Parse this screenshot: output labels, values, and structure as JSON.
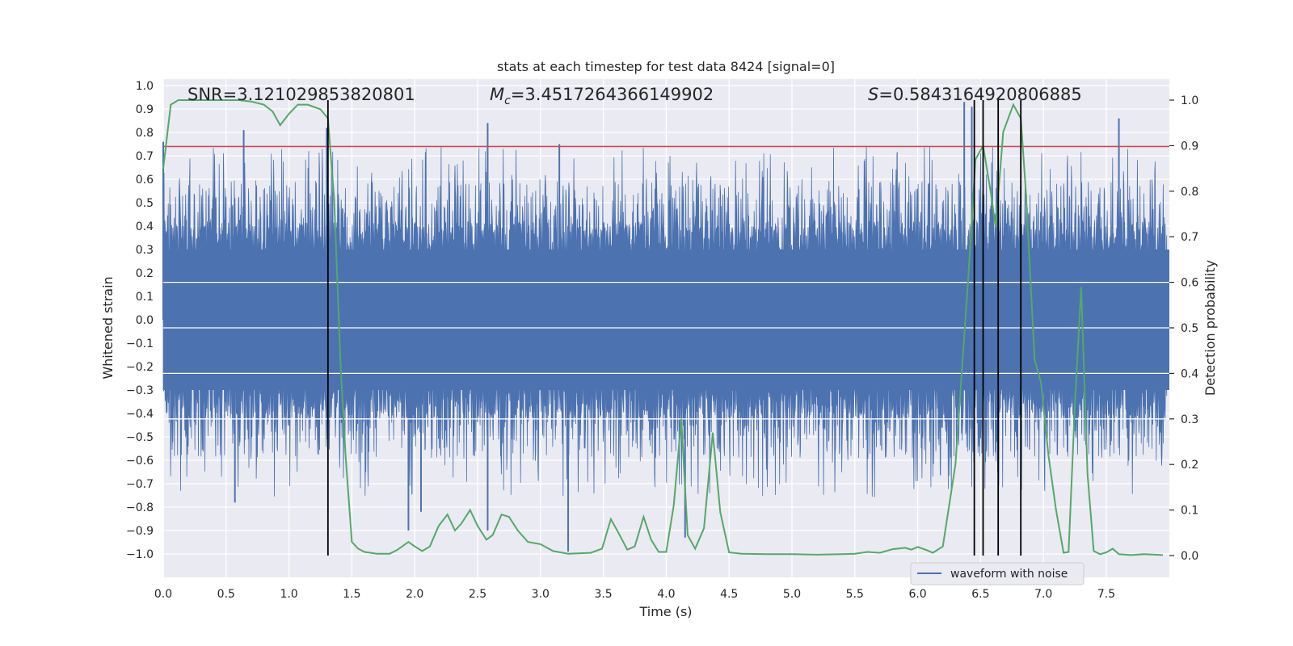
{
  "chart_data": {
    "type": "line",
    "title": "stats at each timestep for test data 8424 [signal=0]",
    "xlabel": "Time (s)",
    "ylabel": "Whitened strain",
    "y2label": "Detection probability",
    "xlim": [
      0.0,
      8.0
    ],
    "ylim": [
      -1.09,
      1.02
    ],
    "y2lim": [
      -0.05,
      1.04
    ],
    "xticks": [
      0.0,
      0.5,
      1.0,
      1.5,
      2.0,
      2.5,
      3.0,
      3.5,
      4.0,
      4.5,
      5.0,
      5.5,
      6.0,
      6.5,
      7.0,
      7.5
    ],
    "yticks": [
      1.0,
      0.9,
      0.8,
      0.7,
      0.6,
      0.5,
      0.4,
      0.3,
      0.2,
      0.1,
      0.0,
      -0.1,
      -0.2,
      -0.3,
      -0.4,
      -0.5,
      -0.6,
      -0.7,
      -0.8,
      -0.9,
      -1.0
    ],
    "y2ticks": [
      1.0,
      0.9,
      0.8,
      0.7,
      0.6,
      0.5,
      0.4,
      0.3,
      0.2,
      0.1,
      0.0
    ],
    "annotations": {
      "snr": "SNR=3.121029853820801",
      "mc_symbol": "M",
      "mc_sub": "c",
      "mc_value": "=3.4517264366149902",
      "s_symbol": "S",
      "s_value": "=0.5843164920806885"
    },
    "threshold": 0.74,
    "threshold_color": "#c44e52",
    "detection_lines": [
      1.31,
      6.45,
      6.52,
      6.64,
      6.82
    ],
    "legend": {
      "label": "waveform with noise",
      "location": "lower-right"
    },
    "waveform": {
      "name": "waveform with noise",
      "color": "#4c72b0",
      "band": [
        -0.42,
        0.42
      ],
      "notable_peaks": [
        {
          "t": 0.0,
          "v": 0.76
        },
        {
          "t": 0.64,
          "v": 0.81
        },
        {
          "t": 1.3,
          "v": 0.82
        },
        {
          "t": 2.58,
          "v": 0.84
        },
        {
          "t": 3.15,
          "v": 0.75
        },
        {
          "t": 6.37,
          "v": 0.93
        },
        {
          "t": 6.43,
          "v": 0.91
        },
        {
          "t": 7.6,
          "v": 0.86
        }
      ],
      "notable_troughs": [
        {
          "t": 3.22,
          "v": -0.99
        },
        {
          "t": 4.15,
          "v": -0.93
        },
        {
          "t": 2.58,
          "v": -0.9
        },
        {
          "t": 1.95,
          "v": -0.9
        },
        {
          "t": 2.05,
          "v": -0.82
        },
        {
          "t": 0.57,
          "v": -0.78
        }
      ]
    },
    "series": [
      {
        "name": "detection probability",
        "color": "#55a868",
        "x": [
          0.0,
          0.06,
          0.12,
          0.2,
          0.3,
          0.4,
          0.5,
          0.6,
          0.7,
          0.8,
          0.87,
          0.93,
          1.0,
          1.07,
          1.15,
          1.25,
          1.31,
          1.36,
          1.41,
          1.45,
          1.5,
          1.55,
          1.6,
          1.7,
          1.8,
          1.86,
          1.95,
          2.0,
          2.06,
          2.12,
          2.19,
          2.26,
          2.32,
          2.37,
          2.44,
          2.5,
          2.57,
          2.62,
          2.69,
          2.75,
          2.82,
          2.9,
          3.0,
          3.1,
          3.22,
          3.3,
          3.4,
          3.49,
          3.56,
          3.62,
          3.69,
          3.75,
          3.82,
          3.88,
          3.94,
          4.0,
          4.06,
          4.12,
          4.17,
          4.23,
          4.3,
          4.37,
          4.43,
          4.5,
          4.6,
          4.8,
          5.0,
          5.2,
          5.4,
          5.5,
          5.6,
          5.7,
          5.8,
          5.9,
          5.95,
          6.0,
          6.08,
          6.12,
          6.2,
          6.3,
          6.4,
          6.46,
          6.52,
          6.58,
          6.62,
          6.68,
          6.76,
          6.82,
          6.86,
          6.93,
          6.98,
          7.04,
          7.1,
          7.16,
          7.2,
          7.25,
          7.3,
          7.35,
          7.4,
          7.45,
          7.5,
          7.55,
          7.6,
          7.7,
          7.8,
          7.95
        ],
        "values": [
          0.85,
          0.99,
          1.0,
          1.0,
          1.0,
          1.0,
          1.0,
          1.0,
          0.997,
          0.99,
          0.975,
          0.945,
          0.97,
          0.99,
          0.99,
          0.98,
          0.96,
          0.78,
          0.42,
          0.22,
          0.03,
          0.015,
          0.008,
          0.004,
          0.004,
          0.012,
          0.03,
          0.02,
          0.01,
          0.02,
          0.065,
          0.09,
          0.055,
          0.07,
          0.1,
          0.065,
          0.035,
          0.045,
          0.09,
          0.085,
          0.055,
          0.03,
          0.025,
          0.01,
          0.004,
          0.005,
          0.006,
          0.015,
          0.08,
          0.05,
          0.013,
          0.02,
          0.085,
          0.035,
          0.008,
          0.008,
          0.11,
          0.3,
          0.045,
          0.015,
          0.06,
          0.27,
          0.095,
          0.007,
          0.004,
          0.003,
          0.003,
          0.002,
          0.003,
          0.004,
          0.008,
          0.006,
          0.014,
          0.017,
          0.013,
          0.019,
          0.011,
          0.006,
          0.02,
          0.2,
          0.6,
          0.87,
          0.9,
          0.8,
          0.72,
          0.93,
          0.99,
          0.96,
          0.8,
          0.43,
          0.38,
          0.22,
          0.1,
          0.006,
          0.008,
          0.33,
          0.59,
          0.18,
          0.01,
          0.003,
          0.007,
          0.015,
          0.003,
          0.001,
          0.003,
          0.001
        ]
      }
    ]
  }
}
